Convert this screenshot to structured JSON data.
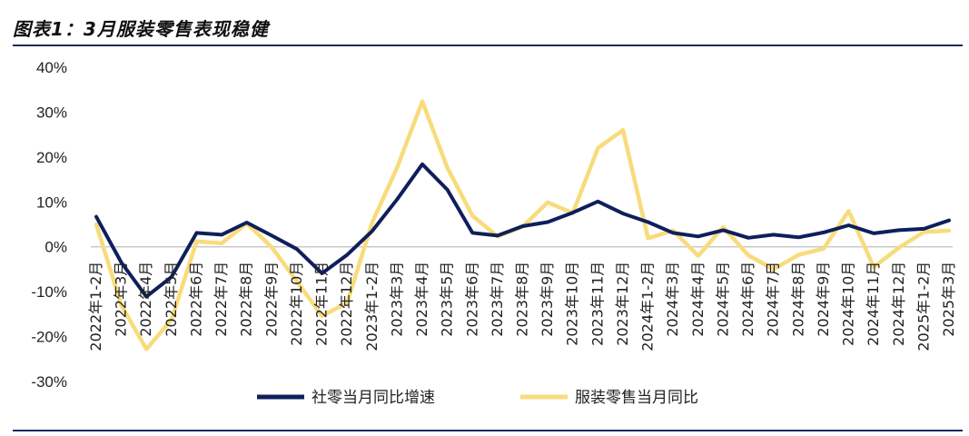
{
  "title": "图表1：3月服装零售表现稳健",
  "chart_data": {
    "type": "line",
    "title": "图表1：3月服装零售表现稳健",
    "xlabel": "",
    "ylabel": "",
    "ylim": [
      -30,
      40
    ],
    "yticks": [
      40,
      30,
      20,
      10,
      0,
      -10,
      -20,
      -30
    ],
    "ytick_labels": [
      "40%",
      "30%",
      "20%",
      "10%",
      "0%",
      "-10%",
      "-20%",
      "-30%"
    ],
    "categories": [
      "2022年1-2月",
      "2022年3月",
      "2022年4月",
      "2022年5月",
      "2022年6月",
      "2022年7月",
      "2022年8月",
      "2022年9月",
      "2022年10月",
      "2022年11月",
      "2022年12月",
      "2023年1-2月",
      "2023年3月",
      "2023年4月",
      "2023年5月",
      "2023年6月",
      "2023年7月",
      "2023年8月",
      "2023年9月",
      "2023年10月",
      "2023年11月",
      "2023年12月",
      "2024年1-2月",
      "2024年3月",
      "2024年4月",
      "2024年5月",
      "2024年6月",
      "2024年7月",
      "2024年8月",
      "2024年9月",
      "2024年10月",
      "2024年11月",
      "2024年12月",
      "2025年1-2月",
      "2025年3月"
    ],
    "series": [
      {
        "name": "社零当月同比增速",
        "color": "#0f1f5c",
        "values": [
          6.7,
          -3.5,
          -11.1,
          -6.7,
          3.1,
          2.7,
          5.4,
          2.5,
          -0.5,
          -5.9,
          -1.8,
          3.5,
          10.6,
          18.4,
          12.7,
          3.1,
          2.5,
          4.6,
          5.5,
          7.6,
          10.1,
          7.4,
          5.5,
          3.1,
          2.3,
          3.7,
          2.0,
          2.7,
          2.1,
          3.2,
          4.8,
          3.0,
          3.7,
          4.0,
          5.9
        ]
      },
      {
        "name": "服装零售当月同比",
        "color": "#f8dc7c",
        "values": [
          5.0,
          -13.0,
          -22.8,
          -16.2,
          1.2,
          0.8,
          5.2,
          -0.1,
          -7.7,
          -15.4,
          -12.5,
          5.4,
          17.7,
          32.4,
          17.6,
          6.9,
          2.3,
          4.5,
          9.9,
          7.5,
          22.0,
          26.0,
          1.9,
          3.6,
          -2.0,
          4.4,
          -1.9,
          -5.0,
          -1.8,
          -0.4,
          8.0,
          -4.5,
          -0.2,
          3.3,
          3.6
        ]
      }
    ],
    "legend": "bottom-center",
    "grid": false
  }
}
